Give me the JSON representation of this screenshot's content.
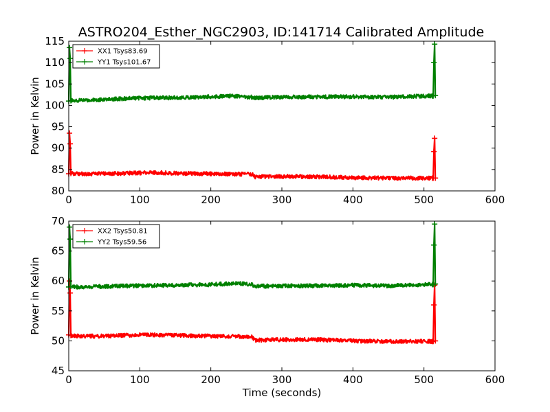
{
  "figure": {
    "title": "ASTRO204_Esther_NGC2903, ID:141714 Calibrated Amplitude"
  },
  "chart_data": [
    {
      "type": "line",
      "panel": "top",
      "title": "ASTRO204_Esther_NGC2903, ID:141714 Calibrated Amplitude",
      "xlabel": "",
      "ylabel": "Power in Kelvin",
      "xlim": [
        0,
        600
      ],
      "ylim": [
        80,
        115
      ],
      "xticks": [
        0,
        100,
        200,
        300,
        400,
        500,
        600
      ],
      "yticks": [
        80,
        85,
        90,
        95,
        100,
        105,
        110,
        115
      ],
      "legend_position": "top-left",
      "series": [
        {
          "name": "XX1 Tsys83.69",
          "color": "#ff0000",
          "x": [
            0,
            1,
            2,
            3,
            10,
            50,
            100,
            120,
            150,
            200,
            250,
            258,
            262,
            300,
            350,
            400,
            450,
            500,
            512,
            513,
            514,
            515,
            516
          ],
          "y": [
            84.0,
            93.5,
            91.0,
            84.1,
            84.0,
            84.0,
            84.2,
            84.3,
            84.1,
            84.0,
            83.9,
            83.9,
            83.3,
            83.4,
            83.3,
            83.1,
            83.0,
            83.0,
            83.0,
            83.0,
            89.2,
            92.3,
            83.0
          ]
        },
        {
          "name": "YY1 Tsys101.67",
          "color": "#008000",
          "x": [
            0,
            1,
            2,
            3,
            10,
            50,
            100,
            150,
            200,
            230,
            250,
            258,
            262,
            300,
            350,
            400,
            450,
            500,
            512,
            513,
            514,
            515,
            516
          ],
          "y": [
            101.0,
            113.5,
            111.0,
            101.1,
            101.1,
            101.4,
            101.7,
            101.8,
            102.0,
            102.2,
            102.0,
            101.9,
            101.8,
            101.9,
            102.0,
            102.0,
            101.9,
            102.2,
            102.2,
            102.2,
            110.0,
            114.3,
            102.3
          ]
        }
      ]
    },
    {
      "type": "line",
      "panel": "bottom",
      "title": "",
      "xlabel": "Time (seconds)",
      "ylabel": "Power in Kelvin",
      "xlim": [
        0,
        600
      ],
      "ylim": [
        45,
        70
      ],
      "xticks": [
        0,
        100,
        200,
        300,
        400,
        500,
        600
      ],
      "yticks": [
        45,
        50,
        55,
        60,
        65,
        70
      ],
      "legend_position": "top-left",
      "series": [
        {
          "name": "XX2 Tsys50.81",
          "color": "#ff0000",
          "x": [
            0,
            1,
            2,
            3,
            10,
            50,
            100,
            120,
            150,
            200,
            250,
            258,
            262,
            300,
            350,
            400,
            450,
            500,
            512,
            513,
            514,
            515,
            516
          ],
          "y": [
            51.0,
            60.0,
            58.0,
            50.9,
            50.8,
            50.8,
            51.0,
            51.0,
            50.9,
            50.8,
            50.7,
            50.7,
            50.1,
            50.2,
            50.2,
            50.0,
            49.9,
            49.9,
            49.9,
            49.9,
            56.0,
            59.3,
            50.0
          ]
        },
        {
          "name": "YY2 Tsys59.56",
          "color": "#008000",
          "x": [
            0,
            1,
            2,
            3,
            10,
            50,
            100,
            150,
            200,
            230,
            250,
            258,
            262,
            300,
            350,
            400,
            450,
            500,
            512,
            513,
            514,
            515,
            516
          ],
          "y": [
            59.0,
            69.0,
            67.0,
            59.1,
            59.0,
            59.1,
            59.2,
            59.3,
            59.4,
            59.6,
            59.5,
            59.4,
            59.1,
            59.2,
            59.2,
            59.3,
            59.2,
            59.4,
            59.4,
            59.4,
            66.0,
            69.5,
            59.5
          ]
        }
      ]
    }
  ]
}
